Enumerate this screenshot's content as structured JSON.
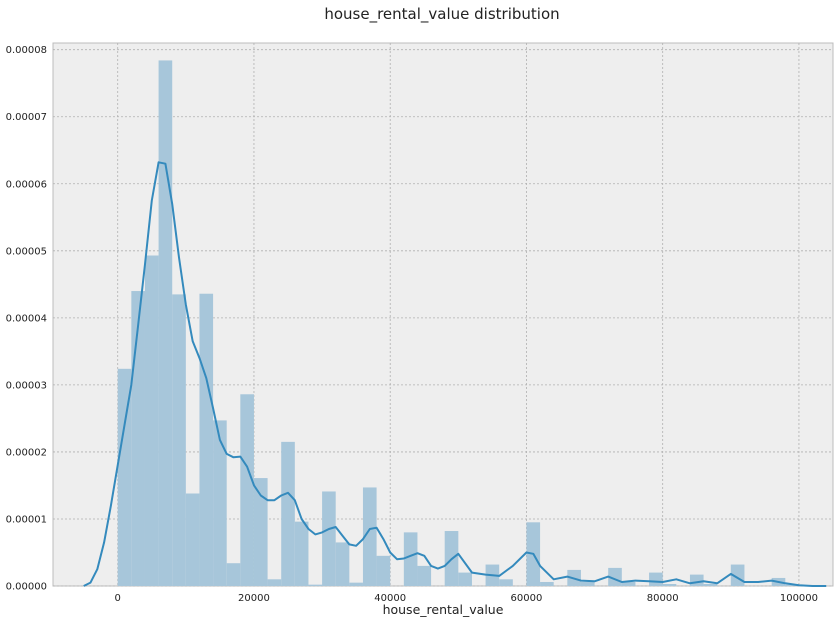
{
  "chart_data": {
    "type": "bar",
    "title": "house_rental_value distribution",
    "xlabel": "house_rental_value",
    "ylabel": "",
    "xlim": [
      -9500,
      105000
    ],
    "ylim": [
      0,
      8.1e-05
    ],
    "xticks": [
      0,
      20000,
      40000,
      60000,
      80000,
      100000
    ],
    "yticks": [
      0,
      1e-05,
      2e-05,
      3e-05,
      4e-05,
      5e-05,
      6e-05,
      7e-05,
      8e-05
    ],
    "ytick_labels": [
      "0.00000",
      "0.00001",
      "0.00002",
      "0.00003",
      "0.00004",
      "0.00005",
      "0.00006",
      "0.00007",
      "0.00008"
    ],
    "grid": true,
    "bar_color": "#a7c6da",
    "kde_color": "#348abd",
    "background": "#eeeeee",
    "bins": {
      "start": 0,
      "width": 2000,
      "values": [
        3.24e-05,
        4.4e-05,
        4.93e-05,
        7.84e-05,
        4.35e-05,
        1.38e-05,
        4.36e-05,
        2.47e-05,
        3.4e-06,
        2.86e-05,
        1.61e-05,
        1e-06,
        2.15e-05,
        9.6e-06,
        2e-07,
        1.41e-05,
        6.5e-06,
        5e-07,
        1.47e-05,
        4.5e-06,
        0.0,
        8e-06,
        3e-06,
        0.0,
        8.2e-06,
        2e-06,
        0.0,
        3.2e-06,
        1e-06,
        0.0,
        9.5e-06,
        6e-07,
        0.0,
        2.4e-06,
        6e-07,
        0.0,
        2.7e-06,
        6e-07,
        0.0,
        2e-06,
        3e-07,
        0.0,
        1.7e-06,
        3e-07,
        0.0,
        3.2e-06,
        0.0,
        0.0,
        1.2e-06,
        2e-07
      ]
    },
    "kde": {
      "x": [
        -5000,
        -4000,
        -3000,
        -2000,
        -1000,
        0,
        1000,
        2000,
        3000,
        4000,
        5000,
        6000,
        7000,
        8000,
        9000,
        10000,
        11000,
        12000,
        13000,
        14000,
        15000,
        16000,
        17000,
        18000,
        19000,
        20000,
        21000,
        22000,
        23000,
        24000,
        25000,
        26000,
        27000,
        28000,
        29000,
        30000,
        31000,
        32000,
        33000,
        34000,
        35000,
        36000,
        37000,
        38000,
        39000,
        40000,
        41000,
        42000,
        43000,
        44000,
        45000,
        46000,
        47000,
        48000,
        49000,
        50000,
        52000,
        54000,
        56000,
        58000,
        60000,
        61000,
        62000,
        64000,
        66000,
        68000,
        70000,
        72000,
        74000,
        76000,
        78000,
        80000,
        82000,
        84000,
        86000,
        88000,
        90000,
        92000,
        94000,
        96000,
        98000,
        100000,
        102000,
        104000
      ],
      "y": [
        0.0,
        5e-07,
        2.5e-06,
        6.5e-06,
        1.2e-05,
        1.8e-05,
        2.4e-05,
        3e-05,
        3.9e-05,
        4.8e-05,
        5.75e-05,
        6.32e-05,
        6.3e-05,
        5.7e-05,
        4.9e-05,
        4.2e-05,
        3.65e-05,
        3.4e-05,
        3.1e-05,
        2.65e-05,
        2.18e-05,
        1.97e-05,
        1.92e-05,
        1.93e-05,
        1.78e-05,
        1.5e-05,
        1.35e-05,
        1.28e-05,
        1.28e-05,
        1.35e-05,
        1.39e-05,
        1.28e-05,
        1e-05,
        8.5e-06,
        7.7e-06,
        8e-06,
        8.5e-06,
        8.8e-06,
        7.5e-06,
        6.2e-06,
        6e-06,
        7e-06,
        8.5e-06,
        8.7e-06,
        7e-06,
        5e-06,
        4e-06,
        4.1e-06,
        4.5e-06,
        4.9e-06,
        4.5e-06,
        3e-06,
        2.6e-06,
        3e-06,
        4e-06,
        4.8e-06,
        2e-06,
        1.7e-06,
        1.5e-06,
        3e-06,
        5e-06,
        4.8e-06,
        3e-06,
        1e-06,
        1.4e-06,
        8e-07,
        7e-07,
        1.4e-06,
        6e-07,
        8e-07,
        7e-07,
        6e-07,
        1e-06,
        4e-07,
        7e-07,
        4e-07,
        1.8e-06,
        6e-07,
        6e-07,
        8e-07,
        4e-07,
        1e-07,
        0.0,
        0.0
      ]
    }
  }
}
